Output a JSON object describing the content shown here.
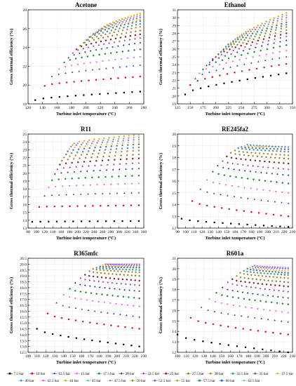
{
  "chart_data": [
    {
      "type": "scatter",
      "title": "Acetone",
      "xlabel": "Turbine inlet temperature (ºC)",
      "ylabel": "Gross thermal efficiency (%)",
      "xlim": [
        120,
        280
      ],
      "ylim": [
        18,
        28
      ],
      "xticks": [
        120,
        140,
        160,
        180,
        200,
        220,
        240,
        260,
        280
      ],
      "yticks": [
        18,
        20,
        22,
        24,
        26,
        28
      ],
      "x_end": 275,
      "x_starts": [
        130,
        143,
        153,
        163,
        170,
        176,
        182,
        187,
        192,
        197,
        201,
        205,
        209,
        213,
        217,
        221
      ],
      "series_values": [
        [
          18.4,
          19.3
        ],
        [
          19.9,
          20.9
        ],
        [
          20.9,
          22.1
        ],
        [
          21.7,
          23.0
        ],
        [
          22.4,
          23.8
        ],
        [
          22.9,
          24.5
        ],
        [
          23.4,
          25.0
        ],
        [
          23.8,
          25.4
        ],
        [
          24.2,
          25.8
        ],
        [
          24.5,
          26.2
        ],
        [
          24.8,
          26.5
        ],
        [
          25.1,
          26.8
        ],
        [
          25.3,
          27.0
        ],
        [
          25.5,
          27.2
        ],
        [
          25.7,
          27.4
        ],
        [
          25.9,
          27.6
        ]
      ]
    },
    {
      "type": "scatter",
      "title": "Ethanol",
      "xlabel": "Turbine inlet temperature (ºC)",
      "ylabel": "Gross thermal efficiency (%)",
      "xlim": [
        125,
        350
      ],
      "ylim": [
        19,
        31
      ],
      "xticks": [
        125,
        150,
        175,
        200,
        225,
        250,
        275,
        300,
        325,
        350
      ],
      "yticks": [
        19,
        20,
        21,
        22,
        23,
        24,
        25,
        26,
        27,
        28,
        29,
        30,
        31
      ],
      "x_end": 338,
      "x_starts": [
        140,
        150,
        160,
        168,
        175,
        182,
        188,
        194,
        200,
        205,
        210,
        215,
        220,
        225,
        230,
        235
      ],
      "series_values": [
        [
          20.2,
          22.9
        ],
        [
          21.4,
          24.1
        ],
        [
          22.2,
          25.0
        ],
        [
          22.9,
          25.8
        ],
        [
          23.4,
          26.5
        ],
        [
          23.9,
          27.1
        ],
        [
          24.3,
          27.6
        ],
        [
          24.7,
          28.0
        ],
        [
          25.0,
          28.4
        ],
        [
          25.3,
          28.8
        ],
        [
          25.6,
          29.1
        ],
        [
          25.9,
          29.4
        ],
        [
          26.1,
          29.7
        ],
        [
          26.3,
          30.0
        ],
        [
          26.5,
          30.3
        ],
        [
          26.7,
          30.6
        ]
      ]
    },
    {
      "type": "scatter",
      "title": "R11",
      "xlabel": "Turbine inlet temperature (ºC)",
      "ylabel": "Gross thermal efficiency (%)",
      "xlim": [
        80,
        360
      ],
      "ylim": [
        13,
        25
      ],
      "xticks": [
        80,
        100,
        120,
        140,
        160,
        180,
        200,
        220,
        240,
        260,
        280,
        300,
        320,
        340,
        360
      ],
      "yticks": [
        13,
        14,
        15,
        16,
        17,
        18,
        19,
        20,
        21,
        22,
        23,
        24,
        25
      ],
      "x_end": 348,
      "x_starts": [
        90,
        107,
        120,
        130,
        138,
        145,
        151,
        157,
        162,
        167,
        172,
        176,
        180,
        184,
        188,
        192
      ],
      "series_values": [
        [
          13.8,
          13.9
        ],
        [
          15.7,
          15.9
        ],
        [
          17.1,
          17.5
        ],
        [
          18.2,
          18.7
        ],
        [
          19.1,
          19.7
        ],
        [
          19.9,
          20.6
        ],
        [
          20.5,
          21.3
        ],
        [
          21.1,
          21.9
        ],
        [
          21.6,
          22.4
        ],
        [
          22.0,
          22.9
        ],
        [
          22.4,
          23.3
        ],
        [
          22.8,
          23.7
        ],
        [
          23.1,
          24.0
        ],
        [
          23.4,
          24.3
        ],
        [
          23.6,
          24.6
        ],
        [
          23.8,
          24.9
        ]
      ]
    },
    {
      "type": "scatter",
      "title": "RE245fa2",
      "xlabel": "Turbine inlet temperature (ºC)",
      "ylabel": "Gross thermal efficiency (%)",
      "xlim": [
        90,
        230
      ],
      "ylim": [
        12,
        20
      ],
      "xticks": [
        90,
        100,
        110,
        120,
        130,
        140,
        150,
        160,
        170,
        180,
        190,
        200,
        210,
        220,
        230
      ],
      "yticks": [
        12,
        13,
        14,
        15,
        16,
        17,
        18,
        19,
        20
      ],
      "x_end": 225,
      "x_starts": [
        95,
        108,
        118,
        126,
        133,
        139,
        145,
        150,
        155,
        160,
        164,
        168,
        172,
        175
      ],
      "series_values": [
        [
          12.8,
          12.1
        ],
        [
          14.3,
          13.0
        ],
        [
          15.3,
          14.1
        ],
        [
          16.1,
          15.0
        ],
        [
          16.8,
          15.8
        ],
        [
          17.3,
          16.5
        ],
        [
          17.7,
          17.0
        ],
        [
          18.1,
          17.5
        ],
        [
          18.4,
          17.9
        ],
        [
          18.6,
          18.2
        ],
        [
          18.8,
          18.5
        ],
        [
          18.9,
          18.7
        ],
        [
          19.0,
          18.9
        ],
        [
          19.1,
          18.9
        ]
      ]
    },
    {
      "type": "scatter",
      "title": "R365mfc",
      "xlabel": "Turbine inlet temperature (ºC)",
      "ylabel": "Gross thermal efficiency (%)",
      "xlim": [
        100,
        230
      ],
      "ylim": [
        12.5,
        20.5
      ],
      "xticks": [
        100,
        110,
        120,
        130,
        140,
        150,
        160,
        170,
        180,
        190,
        200,
        210,
        220,
        230
      ],
      "yticks": [
        12.5,
        13.0,
        13.5,
        14.0,
        14.5,
        15.0,
        15.5,
        16.0,
        16.5,
        17.0,
        17.5,
        18.0,
        18.5,
        19.0,
        19.5,
        20.0,
        20.5
      ],
      "x_end": 225,
      "x_starts": [
        110,
        122,
        132,
        140,
        147,
        153,
        159,
        164,
        169,
        173,
        177,
        181,
        184,
        187,
        189
      ],
      "series_values": [
        [
          14.5,
          13.0
        ],
        [
          15.8,
          14.5
        ],
        [
          16.7,
          15.5
        ],
        [
          17.4,
          16.4
        ],
        [
          17.9,
          17.1
        ],
        [
          18.4,
          17.7
        ],
        [
          18.8,
          18.2
        ],
        [
          19.1,
          18.6
        ],
        [
          19.4,
          19.0
        ],
        [
          19.6,
          19.3
        ],
        [
          19.7,
          19.5
        ],
        [
          19.8,
          19.7
        ],
        [
          19.9,
          19.8
        ],
        [
          20.0,
          19.9
        ],
        [
          20.0,
          20.0
        ]
      ]
    },
    {
      "type": "scatter",
      "title": "R601a",
      "xlabel": "Turbine inlet temperature (ºC)",
      "ylabel": "Gross thermal efficiency (%)",
      "xlim": [
        100,
        230
      ],
      "ylim": [
        12,
        21
      ],
      "xticks": [
        100,
        110,
        120,
        130,
        140,
        150,
        160,
        170,
        180,
        190,
        200,
        210,
        220,
        230
      ],
      "yticks": [
        12,
        13,
        14,
        15,
        16,
        17,
        18,
        19,
        20,
        21
      ],
      "x_end": 225,
      "x_starts": [
        100,
        115,
        127,
        136,
        144,
        151,
        157,
        162,
        167,
        171,
        175,
        179,
        182,
        185,
        187
      ],
      "series_values": [
        [
          13.7,
          12.0
        ],
        [
          15.3,
          13.7
        ],
        [
          16.3,
          14.9
        ],
        [
          17.1,
          15.8
        ],
        [
          17.7,
          16.6
        ],
        [
          18.2,
          17.2
        ],
        [
          18.7,
          17.8
        ],
        [
          19.0,
          18.3
        ],
        [
          19.3,
          18.7
        ],
        [
          19.6,
          19.1
        ],
        [
          19.8,
          19.4
        ],
        [
          20.0,
          19.6
        ],
        [
          20.1,
          19.8
        ],
        [
          20.2,
          20.0
        ],
        [
          20.3,
          20.1
        ]
      ]
    }
  ],
  "legend": {
    "placement": "bottom",
    "items": [
      {
        "label": "7.5 bar",
        "color": "#000000",
        "marker": "square"
      },
      {
        "label": "10 bar",
        "color": "#e8001c",
        "marker": "circle"
      },
      {
        "label": "12.5 bar",
        "color": "#1f2dd6",
        "marker": "triangle-up"
      },
      {
        "label": "15 bar",
        "color": "#ff33ff",
        "marker": "triangle-down"
      },
      {
        "label": "17.5 bar",
        "color": "#0c8a2b",
        "marker": "diamond"
      },
      {
        "label": "20 bar",
        "color": "#0a1a8c",
        "marker": "triangle-left"
      },
      {
        "label": "22.5 bar",
        "color": "#9a0fa8",
        "marker": "triangle-right"
      },
      {
        "label": "25 bar",
        "color": "#8e0f1a",
        "marker": "hexagon"
      },
      {
        "label": "27.5 bar",
        "color": "#6b6b00",
        "marker": "star"
      },
      {
        "label": "30 bar",
        "color": "#b57a00",
        "marker": "pentagon"
      },
      {
        "label": "32.5 bar",
        "color": "#3d9e9e",
        "marker": "square"
      },
      {
        "label": "35 bar",
        "color": "#5a6f8e",
        "marker": "circle"
      },
      {
        "label": "37.5 bar",
        "color": "#d4a800",
        "marker": "triangle-up"
      },
      {
        "label": "40 bar",
        "color": "#2f7fe0",
        "marker": "star"
      },
      {
        "label": "42.5 bar",
        "color": "#ff2fd0",
        "marker": "triangle-down"
      },
      {
        "label": "44 bar",
        "color": "#b8c000",
        "marker": "diamond"
      },
      {
        "label": "45 bar",
        "color": "#00c8c8",
        "marker": "triangle-left"
      },
      {
        "label": "47.5 bar",
        "color": "#7a7a7a",
        "marker": "triangle-right"
      },
      {
        "label": "50 bar",
        "color": "#9a8f00",
        "marker": "hexagon"
      },
      {
        "label": "52.5 bar",
        "color": "#4a4a9e",
        "marker": "star"
      },
      {
        "label": "55 bar",
        "color": "#b0a000",
        "marker": "pentagon"
      },
      {
        "label": "57.5 bar",
        "color": "#1a9e3a",
        "marker": "square"
      },
      {
        "label": "60 bar",
        "color": "#2b5fd0",
        "marker": "circle"
      },
      {
        "label": "62.5 bar",
        "color": "#5fb0e0",
        "marker": "triangle-up"
      }
    ]
  }
}
